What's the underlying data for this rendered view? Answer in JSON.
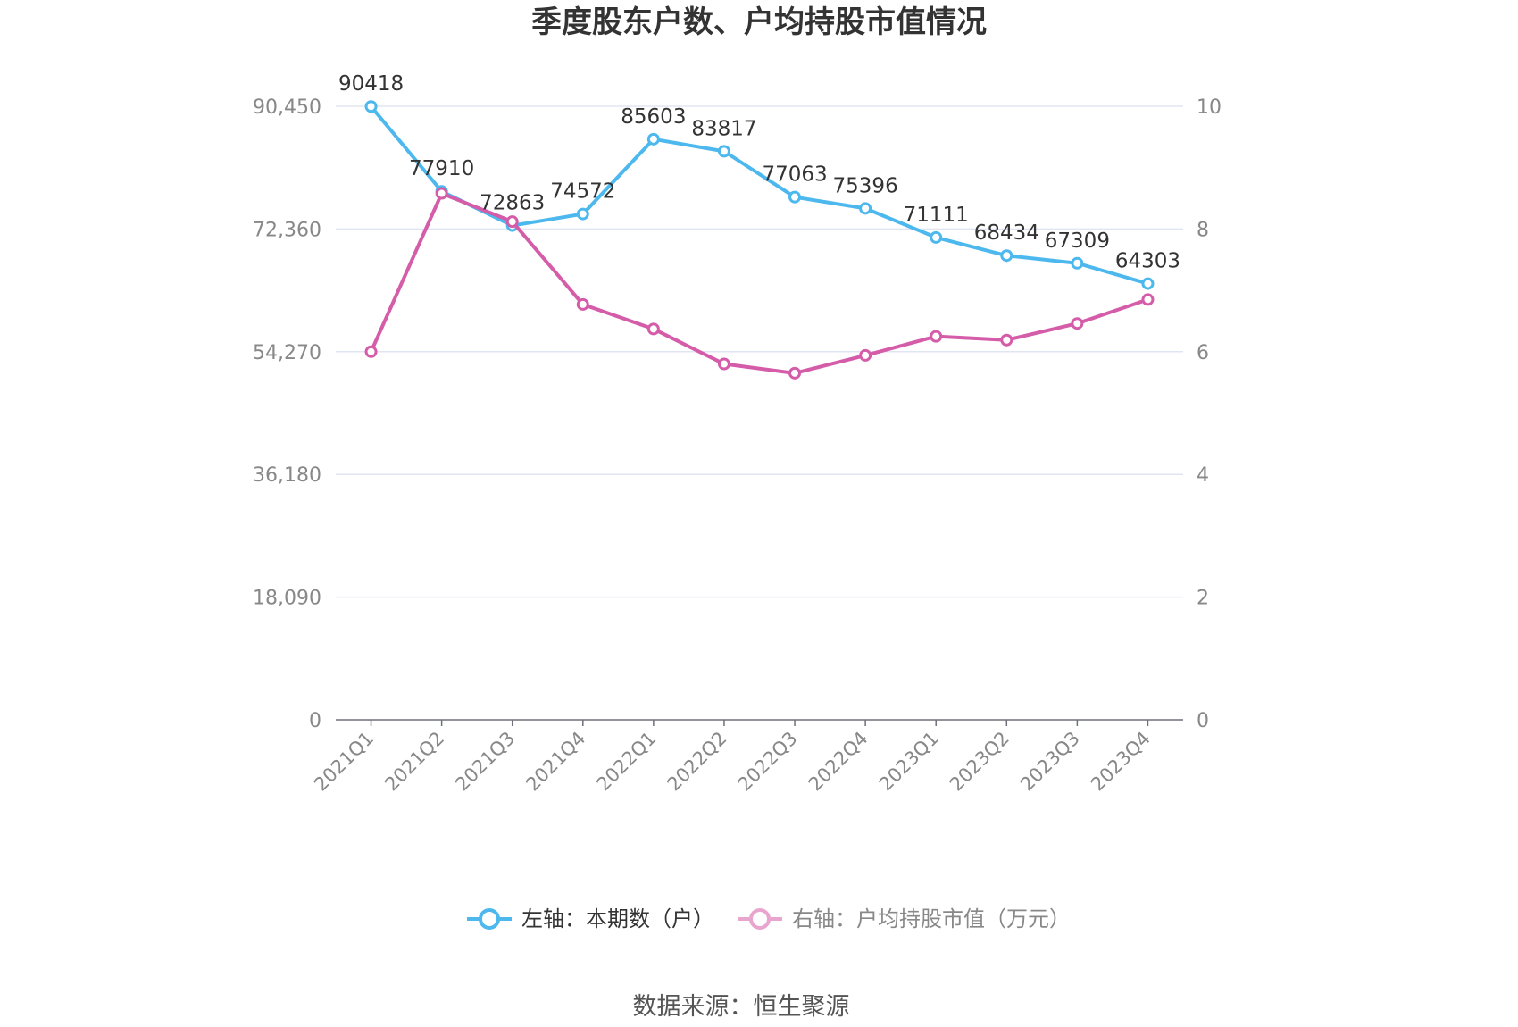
{
  "chart_data": {
    "type": "line",
    "title": "季度股东户数、户均持股市值情况",
    "categories": [
      "2021Q1",
      "2021Q2",
      "2021Q3",
      "2021Q4",
      "2022Q1",
      "2022Q2",
      "2022Q3",
      "2022Q4",
      "2023Q1",
      "2023Q2",
      "2023Q3",
      "2023Q4"
    ],
    "y_left": {
      "ylim": [
        0,
        90450
      ],
      "ticks": [
        "0",
        "18,090",
        "36,180",
        "54,270",
        "72,360",
        "90,450"
      ]
    },
    "y_right": {
      "ylim": [
        0,
        10
      ],
      "ticks": [
        "0",
        "2",
        "4",
        "6",
        "8",
        "10"
      ]
    },
    "grid": true,
    "legend_position": "bottom",
    "series": [
      {
        "name": "左轴：本期数（户）",
        "axis": "left",
        "color": "#4DB8EE",
        "values": [
          90418,
          77910,
          72863,
          74572,
          85603,
          83817,
          77063,
          75396,
          71111,
          68434,
          67309,
          64303
        ],
        "labels": [
          "90418",
          "77910",
          "72863",
          "74572",
          "85603",
          "83817",
          "77063",
          "75396",
          "71111",
          "68434",
          "67309",
          "64303"
        ]
      },
      {
        "name": "右轴：户均持股市值（万元）",
        "axis": "right",
        "color": "#D45CA8",
        "values": [
          6.0,
          8.58,
          8.12,
          6.77,
          6.37,
          5.8,
          5.65,
          5.94,
          6.25,
          6.19,
          6.46,
          6.85
        ]
      }
    ]
  },
  "source": "数据来源：恒生聚源"
}
